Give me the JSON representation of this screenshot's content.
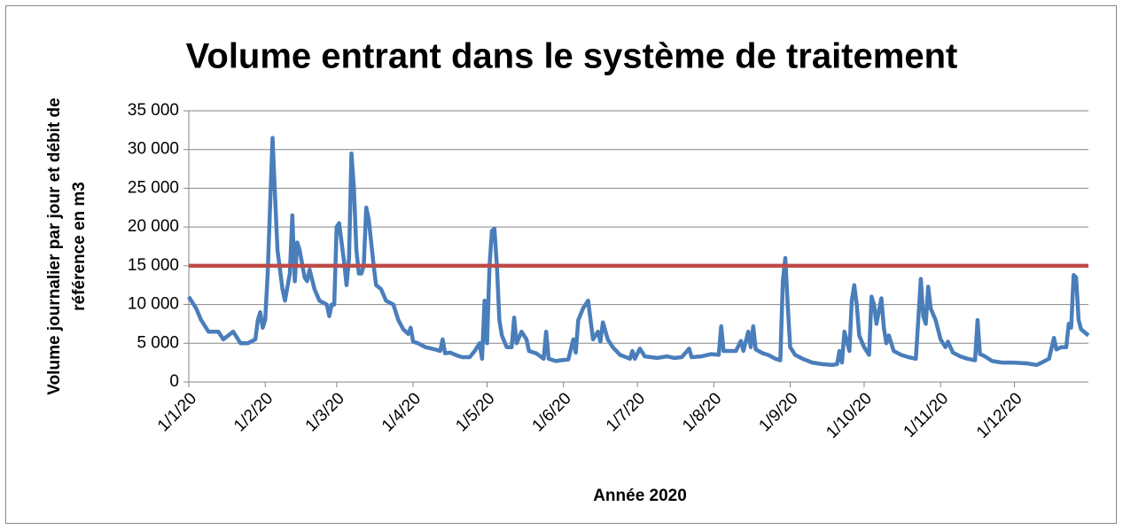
{
  "chart_data": {
    "type": "line",
    "title": "Volume entrant dans le système de traitement",
    "x_label": "Année 2020",
    "y_label": [
      "Volume journalier par jour et débit de",
      "référence en m3"
    ],
    "xlim": [
      "1/1/20",
      "31/12/20"
    ],
    "xticks": [
      "1/1/20",
      "1/2/20",
      "1/3/20",
      "1/4/20",
      "1/5/20",
      "1/6/20",
      "1/7/20",
      "1/8/20",
      "1/9/20",
      "1/10/20",
      "1/11/20",
      "1/12/20"
    ],
    "ylim": [
      0,
      35000
    ],
    "yticks": [
      0,
      {
        "value": 5000,
        "label": "5 000"
      },
      {
        "value": 10000,
        "label": "10 000"
      },
      {
        "value": 15000,
        "label": "15 000"
      },
      {
        "value": 20000,
        "label": "20 000"
      },
      {
        "value": 25000,
        "label": "25 000"
      },
      {
        "value": 30000,
        "label": "30 000"
      },
      {
        "value": 35000,
        "label": "35 000"
      }
    ],
    "grid": true,
    "series": [
      {
        "color": "#4a7ebb",
        "x": [
          "1/1/20",
          "4/1/20",
          "6/1/20",
          "9/1/20",
          "13/1/20",
          "15/1/20",
          "17/1/20",
          "19/1/20",
          "22/1/20",
          "25/1/20",
          "28/1/20",
          "29/1/20",
          "30/1/20",
          "31/1/20",
          "1/2/20",
          "2/2/20",
          "4/2/20",
          "5/2/20",
          "6/2/20",
          "8/2/20",
          "9/2/20",
          "11/2/20",
          "12/2/20",
          "13/2/20",
          "14/2/20",
          "15/2/20",
          "17/2/20",
          "18/2/20",
          "19/2/20",
          "21/2/20",
          "23/2/20",
          "26/2/20",
          "27/2/20",
          "28/2/20",
          "29/2/20",
          "1/3/20",
          "2/3/20",
          "4/3/20",
          "5/3/20",
          "6/3/20",
          "7/3/20",
          "8/3/20",
          "9/3/20",
          "10/3/20",
          "11/3/20",
          "12/3/20",
          "13/3/20",
          "14/3/20",
          "16/3/20",
          "17/3/20",
          "19/3/20",
          "21/3/20",
          "24/3/20",
          "26/3/20",
          "28/3/20",
          "30/3/20",
          "31/3/20",
          "1/4/20",
          "3/4/20",
          "6/4/20",
          "10/4/20",
          "12/4/20",
          "13/4/20",
          "14/4/20",
          "16/4/20",
          "19/4/20",
          "21/4/20",
          "24/4/20",
          "26/4/20",
          "28/4/20",
          "29/4/20",
          "30/4/20",
          "1/5/20",
          "2/5/20",
          "3/5/20",
          "4/5/20",
          "5/5/20",
          "6/5/20",
          "7/5/20",
          "9/5/20",
          "11/5/20",
          "12/5/20",
          "13/5/20",
          "15/5/20",
          "17/5/20",
          "18/5/20",
          "21/5/20",
          "24/5/20",
          "25/5/20",
          "26/5/20",
          "29/5/20",
          "31/5/20",
          "3/6/20",
          "5/6/20",
          "6/6/20",
          "7/6/20",
          "9/6/20",
          "11/6/20",
          "12/6/20",
          "13/6/20",
          "15/6/20",
          "16/6/20",
          "17/6/20",
          "19/6/20",
          "21/6/20",
          "24/6/20",
          "28/6/20",
          "29/6/20",
          "30/6/20",
          "2/7/20",
          "4/7/20",
          "9/7/20",
          "13/7/20",
          "16/7/20",
          "19/7/20",
          "22/7/20",
          "23/7/20",
          "27/7/20",
          "31/7/20",
          "3/8/20",
          "4/8/20",
          "5/8/20",
          "8/8/20",
          "10/8/20",
          "12/8/20",
          "13/8/20",
          "15/8/20",
          "16/8/20",
          "17/8/20",
          "18/8/20",
          "21/8/20",
          "23/8/20",
          "26/8/20",
          "28/8/20",
          "29/8/20",
          "30/8/20",
          "31/8/20",
          "1/9/20",
          "3/9/20",
          "6/9/20",
          "10/9/20",
          "14/9/20",
          "18/9/20",
          "20/9/20",
          "21/9/20",
          "22/9/20",
          "23/9/20",
          "25/9/20",
          "26/9/20",
          "27/9/20",
          "28/9/20",
          "29/9/20",
          "1/10/20",
          "2/10/20",
          "3/10/20",
          "4/10/20",
          "5/10/20",
          "6/10/20",
          "8/10/20",
          "9/10/20",
          "10/10/20",
          "11/10/20",
          "13/10/20",
          "16/10/20",
          "19/10/20",
          "22/10/20",
          "24/10/20",
          "25/10/20",
          "26/10/20",
          "27/10/20",
          "28/10/20",
          "30/10/20",
          "1/11/20",
          "3/11/20",
          "4/11/20",
          "6/11/20",
          "9/11/20",
          "12/11/20",
          "15/11/20",
          "16/11/20",
          "17/11/20",
          "19/11/20",
          "22/11/20",
          "26/11/20",
          "30/11/20",
          "6/12/20",
          "10/12/20",
          "12/12/20",
          "15/12/20",
          "17/12/20",
          "18/12/20",
          "20/12/20",
          "22/12/20",
          "23/12/20",
          "24/12/20",
          "25/12/20",
          "26/12/20",
          "27/12/20",
          "28/12/20",
          "31/12/20"
        ],
        "values": [
          11000,
          9500,
          8000,
          6500,
          6500,
          5500,
          6000,
          6500,
          5000,
          5000,
          5500,
          8000,
          9000,
          7000,
          8000,
          14000,
          31500,
          24000,
          17000,
          12000,
          10500,
          14000,
          21500,
          13000,
          18000,
          17000,
          13500,
          13000,
          14500,
          12000,
          10500,
          10000,
          8500,
          10000,
          10000,
          20000,
          20500,
          15500,
          12500,
          16000,
          29500,
          25000,
          17000,
          14000,
          14000,
          15000,
          22500,
          21000,
          15000,
          12500,
          12000,
          10500,
          10000,
          8000,
          6800,
          6200,
          7000,
          5200,
          5000,
          4500,
          4200,
          4000,
          5500,
          3700,
          3800,
          3400,
          3200,
          3200,
          4000,
          5000,
          3000,
          10500,
          5000,
          15000,
          19500,
          19800,
          15000,
          8000,
          6000,
          4500,
          4500,
          8300,
          5000,
          6500,
          5500,
          4000,
          3700,
          3000,
          6500,
          3000,
          2700,
          2800,
          2900,
          5500,
          3800,
          8000,
          9500,
          10500,
          8000,
          5500,
          6500,
          5200,
          7700,
          5500,
          4500,
          3500,
          3000,
          4000,
          3000,
          4300,
          3300,
          3100,
          3300,
          3100,
          3200,
          4300,
          3200,
          3300,
          3600,
          3500,
          7200,
          4000,
          4000,
          4000,
          5300,
          4000,
          6500,
          4500,
          7200,
          4200,
          3700,
          3500,
          3000,
          2800,
          13000,
          16000,
          10000,
          4500,
          3500,
          3000,
          2500,
          2300,
          2200,
          2300,
          4000,
          2500,
          6500,
          4000,
          10500,
          12500,
          10000,
          6000,
          4500,
          4000,
          3500,
          11000,
          10000,
          7500,
          10800,
          7000,
          5000,
          6000,
          4000,
          3500,
          3200,
          3000,
          13300,
          8500,
          7500,
          12300,
          9500,
          8000,
          5500,
          4500,
          5200,
          3800,
          3300,
          3000,
          2800,
          8000,
          3600,
          3300,
          2700,
          2500,
          2500,
          2400,
          2200,
          2500,
          3000,
          5700,
          4200,
          4500,
          4500,
          7500,
          7000,
          13800,
          13500,
          8000,
          6800,
          6000
        ]
      },
      {
        "color": "#be4b48",
        "x": [
          "1/1/20",
          "31/12/20"
        ],
        "values": [
          15000,
          15000
        ]
      }
    ]
  }
}
